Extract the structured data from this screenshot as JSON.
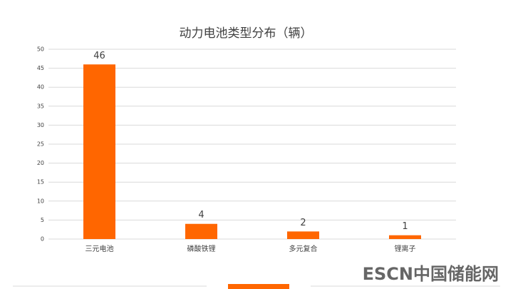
{
  "chart_data": {
    "type": "bar",
    "title": "动力电池类型分布（辆）",
    "categories": [
      "三元电池",
      "磷酸铁锂",
      "多元复合",
      "锂离子"
    ],
    "values": [
      46,
      4,
      2,
      1
    ],
    "color": "#ff6600",
    "ylim": [
      0,
      50
    ],
    "yticks": [
      0,
      5,
      10,
      15,
      20,
      25,
      30,
      35,
      40,
      45,
      50
    ],
    "grid": true
  },
  "watermark": "ESCN中国储能网"
}
